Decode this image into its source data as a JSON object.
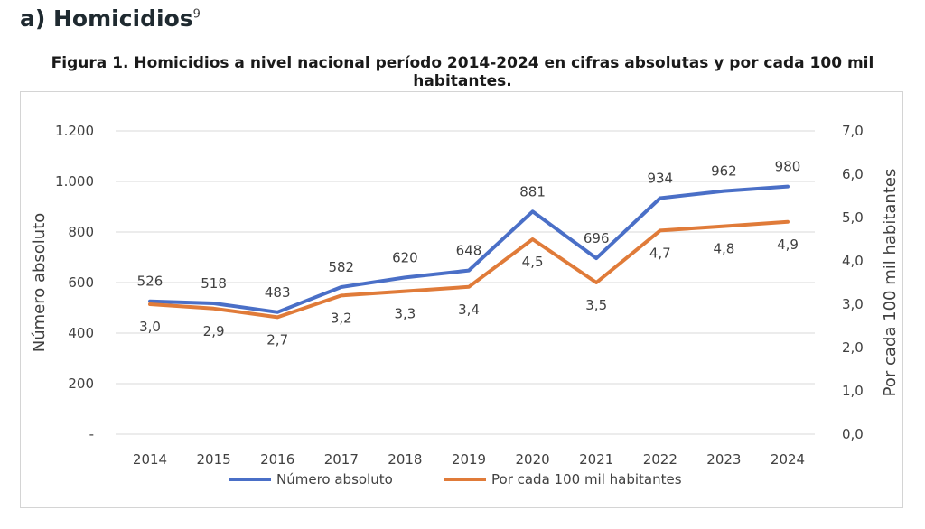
{
  "header": {
    "section_title": "a) Homicidios",
    "footnote_ref": "9",
    "figure_caption": "Figura 1. Homicidios a nivel nacional período 2014-2024 en cifras absolutas y por cada 100 mil habitantes."
  },
  "chart_data": {
    "type": "line",
    "title": "",
    "categories": [
      "2014",
      "2015",
      "2016",
      "2017",
      "2018",
      "2019",
      "2020",
      "2021",
      "2022",
      "2023",
      "2024"
    ],
    "series": [
      {
        "name": "Número absoluto",
        "axis": "left",
        "color": "#4a6fc7",
        "values": [
          526,
          518,
          483,
          582,
          620,
          648,
          881,
          696,
          934,
          962,
          980
        ],
        "labels": [
          "526",
          "518",
          "483",
          "582",
          "620",
          "648",
          "881",
          "696",
          "934",
          "962",
          "980"
        ]
      },
      {
        "name": "Por cada 100 mil habitantes",
        "axis": "right",
        "color": "#e07b39",
        "values": [
          3.0,
          2.9,
          2.7,
          3.2,
          3.3,
          3.4,
          4.5,
          3.5,
          4.7,
          4.8,
          4.9
        ],
        "labels": [
          "3,0",
          "2,9",
          "2,7",
          "3,2",
          "3,3",
          "3,4",
          "4,5",
          "3,5",
          "4,7",
          "4,8",
          "4,9"
        ]
      }
    ],
    "ylabel_left": "Número absoluto",
    "ylabel_right": "Por cada 100 mil habitantes",
    "ylim_left": [
      0,
      1200
    ],
    "ylim_right": [
      0,
      7
    ],
    "yticks_left": [
      "-",
      "200",
      "400",
      "600",
      "800",
      "1.000",
      "1.200"
    ],
    "yticks_right": [
      "0,0",
      "1,0",
      "2,0",
      "3,0",
      "4,0",
      "5,0",
      "6,0",
      "7,0"
    ],
    "grid": true,
    "legend_position": "bottom"
  }
}
